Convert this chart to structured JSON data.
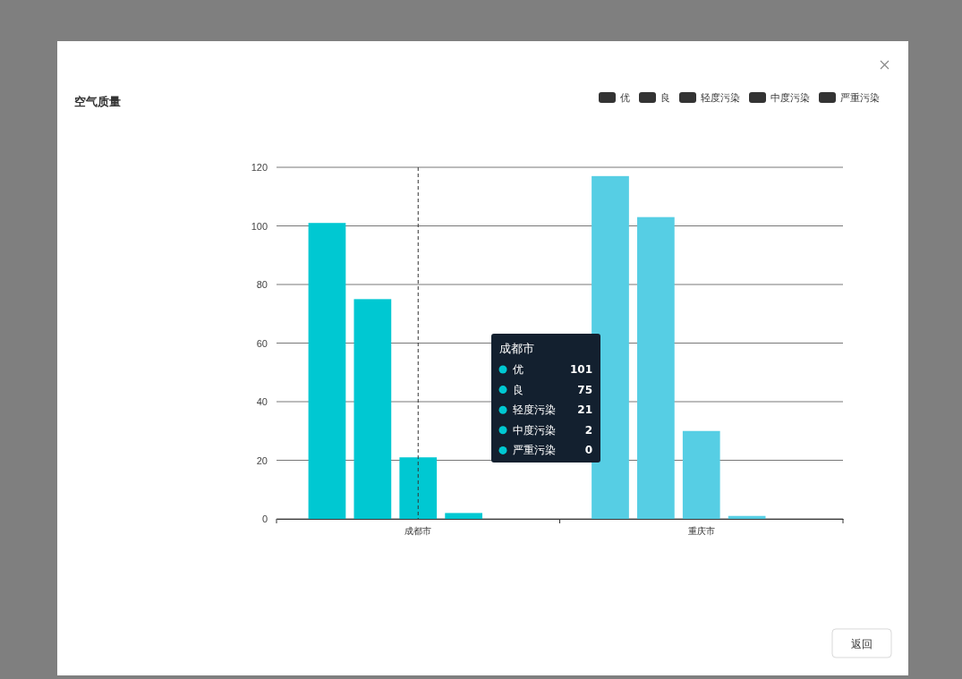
{
  "chart_data": {
    "type": "bar",
    "title": "空气质量",
    "categories": [
      "成都市",
      "重庆市"
    ],
    "series": [
      {
        "name": "优",
        "color": "#333333",
        "colors": [
          "#00c8d2",
          "#56cee4"
        ],
        "values": [
          101,
          117
        ]
      },
      {
        "name": "良",
        "color": "#333333",
        "colors": [
          "#00c8d2",
          "#56cee4"
        ],
        "values": [
          75,
          103
        ]
      },
      {
        "name": "轻度污染",
        "color": "#333333",
        "colors": [
          "#00c8d2",
          "#56cee4"
        ],
        "values": [
          21,
          30
        ]
      },
      {
        "name": "中度污染",
        "color": "#333333",
        "colors": [
          "#00c8d2",
          "#56cee4"
        ],
        "values": [
          2,
          1
        ]
      },
      {
        "name": "严重污染",
        "color": "#333333",
        "colors": [
          "#00c8d2",
          "#56cee4"
        ],
        "values": [
          0,
          0
        ]
      }
    ],
    "ylim": [
      0,
      120
    ],
    "yticks": [
      0,
      20,
      40,
      60,
      80,
      100,
      120
    ],
    "grid": "y",
    "legend": "top right",
    "ref_lines": [
      {
        "axis": "x",
        "value": "成都市",
        "line_style": "dashed",
        "color": "#333333"
      }
    ],
    "annotations": [
      "101",
      "75",
      "21",
      "2",
      "0",
      "返回"
    ]
  }
}
